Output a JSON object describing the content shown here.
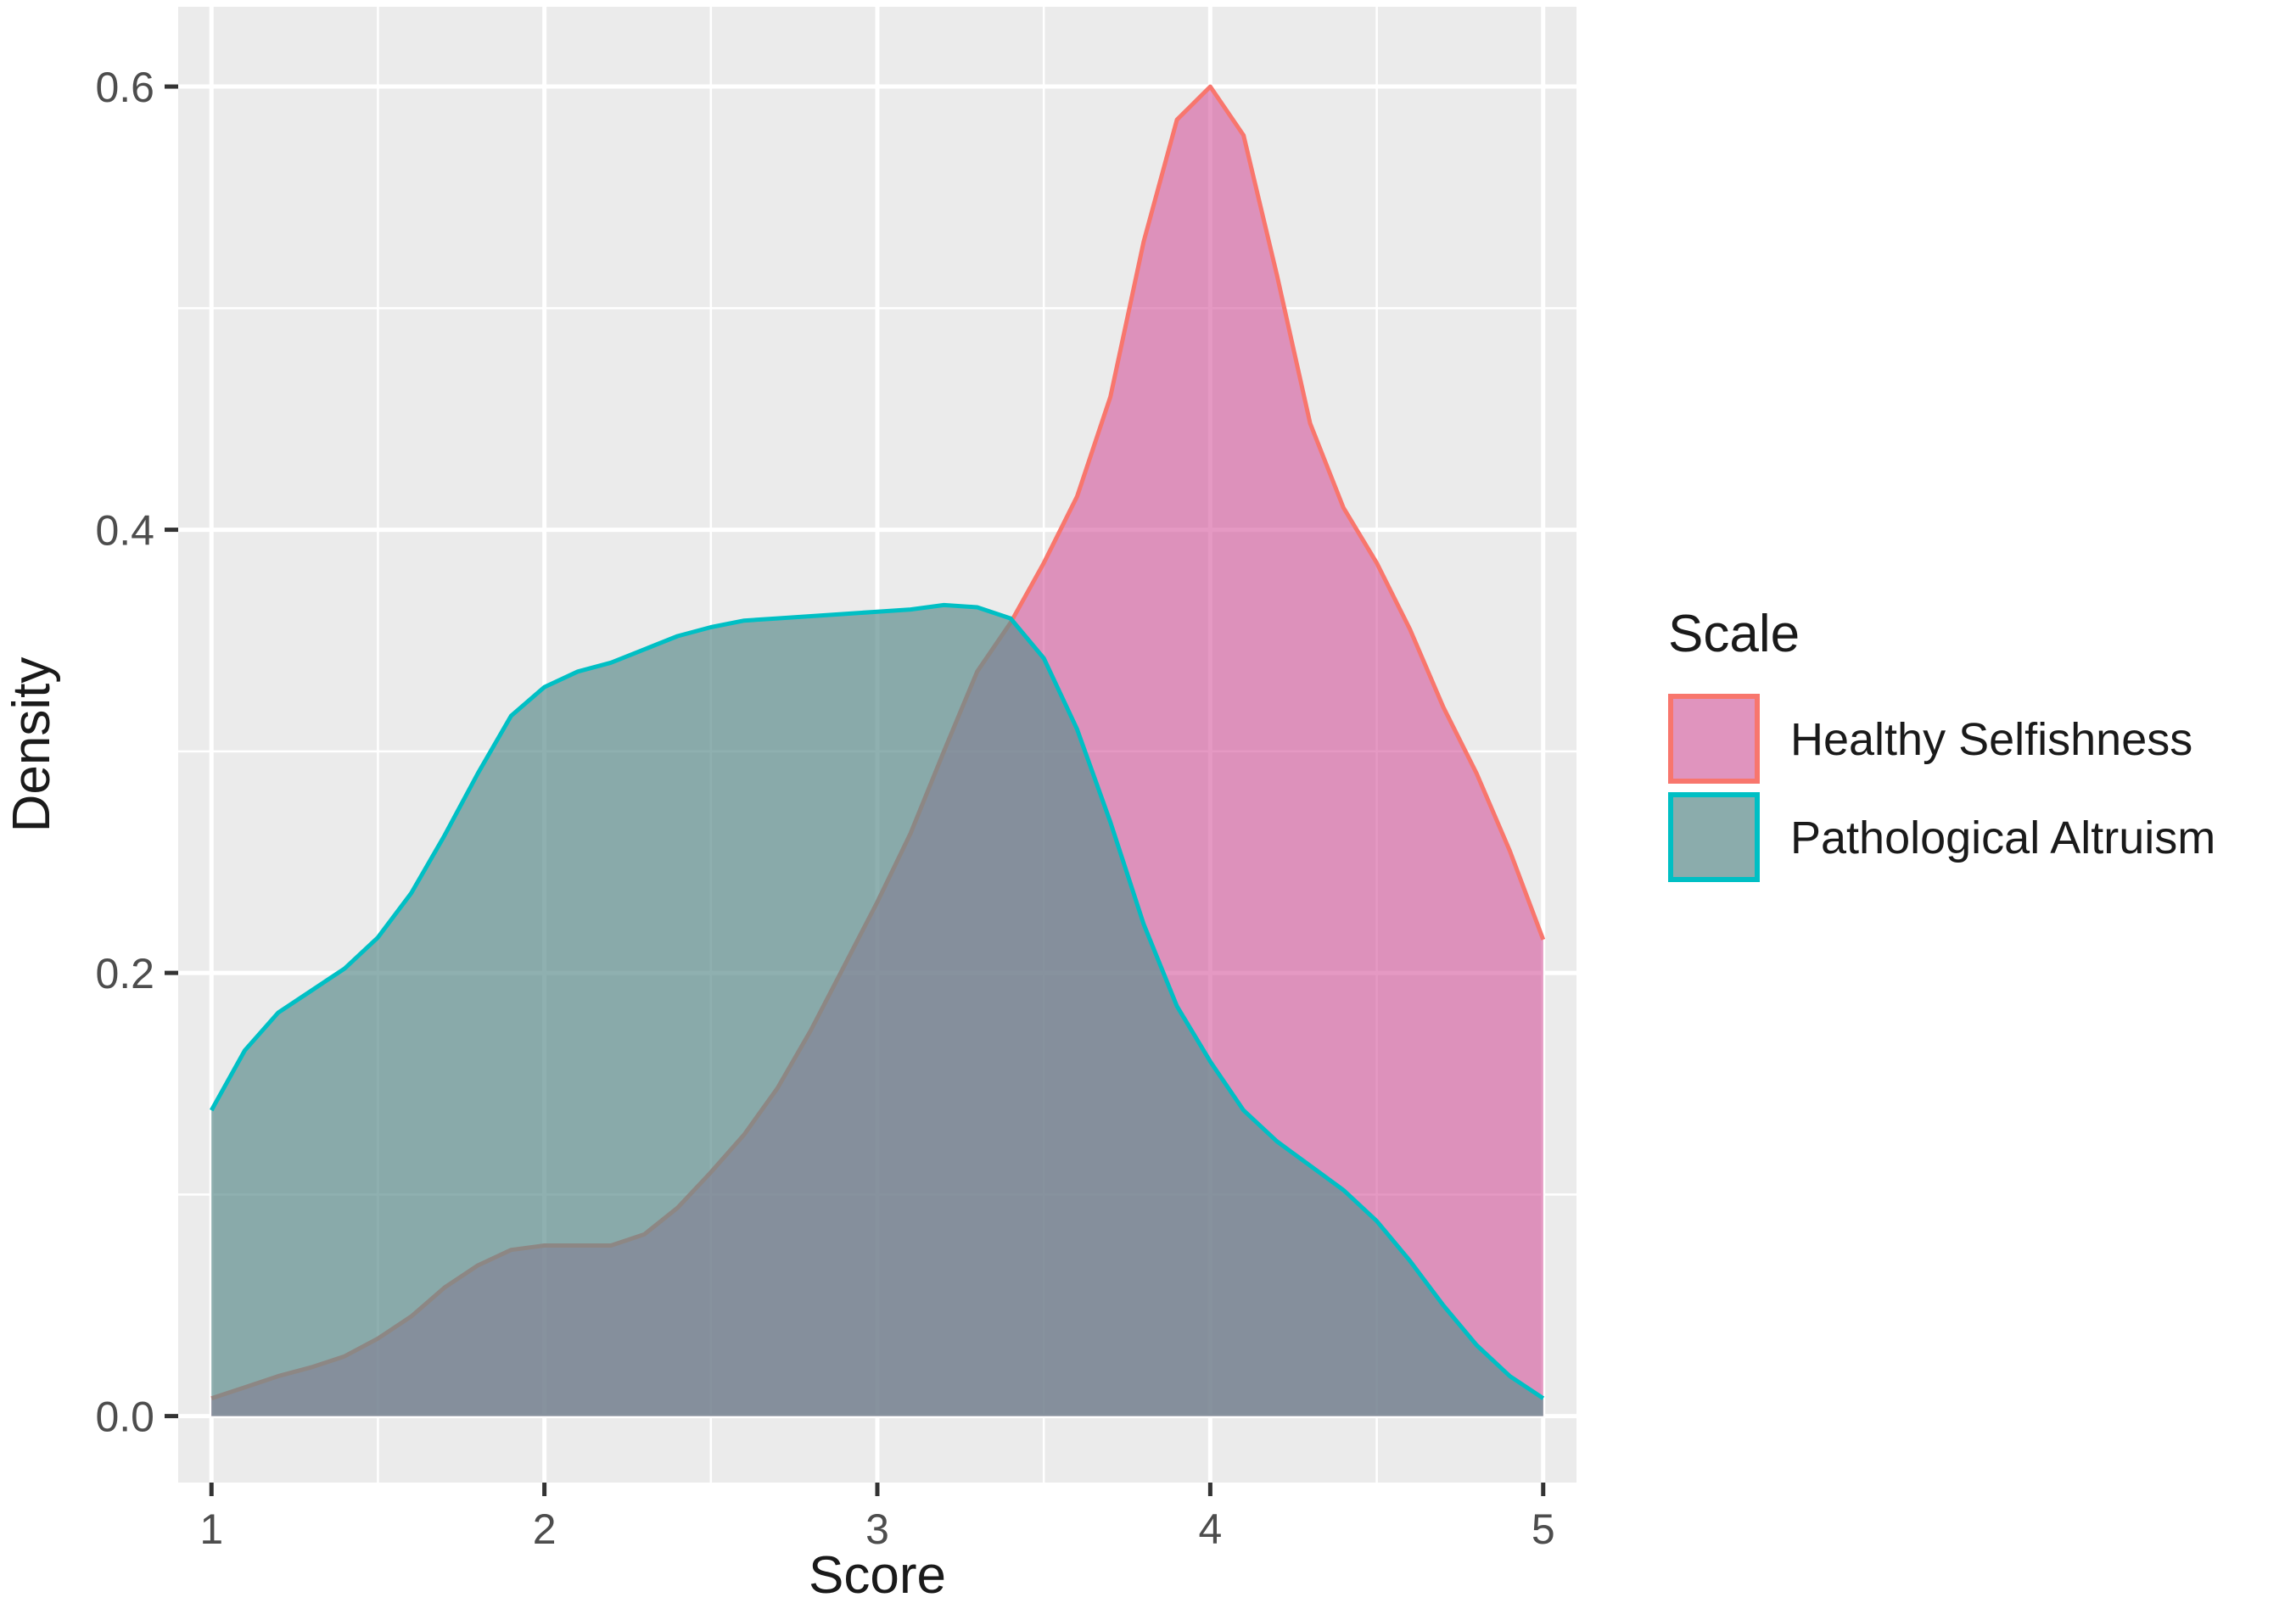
{
  "chart_data": {
    "type": "area",
    "xlabel": "Score",
    "ylabel": "Density",
    "xlim": [
      0.9,
      5.1
    ],
    "ylim": [
      -0.03,
      0.636
    ],
    "x_ticks": [
      1,
      2,
      3,
      4,
      5
    ],
    "y_ticks": [
      0.0,
      0.2,
      0.4,
      0.6
    ],
    "x_tick_labels": [
      "1",
      "2",
      "3",
      "4",
      "5"
    ],
    "y_tick_labels": [
      "0.0",
      "0.2",
      "0.4",
      "0.6"
    ],
    "grid": true,
    "legend": {
      "title": "Scale",
      "placement": "right"
    },
    "series": [
      {
        "name": "Healthy Selfishness",
        "line_color": "#F8766D",
        "fill_color": "#D4559B",
        "fill_opacity": 0.6,
        "points": [
          [
            1.0,
            0.008
          ],
          [
            1.1,
            0.013
          ],
          [
            1.2,
            0.018
          ],
          [
            1.3,
            0.022
          ],
          [
            1.4,
            0.027
          ],
          [
            1.5,
            0.035
          ],
          [
            1.6,
            0.045
          ],
          [
            1.7,
            0.058
          ],
          [
            1.8,
            0.068
          ],
          [
            1.9,
            0.075
          ],
          [
            2.0,
            0.077
          ],
          [
            2.1,
            0.077
          ],
          [
            2.2,
            0.077
          ],
          [
            2.3,
            0.082
          ],
          [
            2.4,
            0.094
          ],
          [
            2.5,
            0.11
          ],
          [
            2.6,
            0.127
          ],
          [
            2.7,
            0.148
          ],
          [
            2.8,
            0.174
          ],
          [
            2.9,
            0.203
          ],
          [
            3.0,
            0.232
          ],
          [
            3.1,
            0.263
          ],
          [
            3.2,
            0.3
          ],
          [
            3.3,
            0.336
          ],
          [
            3.4,
            0.358
          ],
          [
            3.5,
            0.385
          ],
          [
            3.6,
            0.415
          ],
          [
            3.7,
            0.46
          ],
          [
            3.8,
            0.53
          ],
          [
            3.9,
            0.585
          ],
          [
            4.0,
            0.6
          ],
          [
            4.1,
            0.578
          ],
          [
            4.2,
            0.515
          ],
          [
            4.3,
            0.448
          ],
          [
            4.4,
            0.41
          ],
          [
            4.5,
            0.385
          ],
          [
            4.6,
            0.355
          ],
          [
            4.7,
            0.32
          ],
          [
            4.8,
            0.29
          ],
          [
            4.9,
            0.255
          ],
          [
            5.0,
            0.215
          ]
        ]
      },
      {
        "name": "Pathological Altruism",
        "line_color": "#00BFC4",
        "fill_color": "#5F8F8E",
        "fill_opacity": 0.7,
        "points": [
          [
            1.0,
            0.138
          ],
          [
            1.1,
            0.165
          ],
          [
            1.2,
            0.182
          ],
          [
            1.3,
            0.192
          ],
          [
            1.4,
            0.202
          ],
          [
            1.5,
            0.216
          ],
          [
            1.6,
            0.236
          ],
          [
            1.7,
            0.262
          ],
          [
            1.8,
            0.29
          ],
          [
            1.9,
            0.316
          ],
          [
            2.0,
            0.329
          ],
          [
            2.1,
            0.336
          ],
          [
            2.2,
            0.34
          ],
          [
            2.3,
            0.346
          ],
          [
            2.4,
            0.352
          ],
          [
            2.5,
            0.356
          ],
          [
            2.6,
            0.359
          ],
          [
            2.7,
            0.36
          ],
          [
            2.8,
            0.361
          ],
          [
            2.9,
            0.362
          ],
          [
            3.0,
            0.363
          ],
          [
            3.1,
            0.364
          ],
          [
            3.2,
            0.366
          ],
          [
            3.3,
            0.365
          ],
          [
            3.4,
            0.36
          ],
          [
            3.5,
            0.342
          ],
          [
            3.6,
            0.31
          ],
          [
            3.7,
            0.268
          ],
          [
            3.8,
            0.222
          ],
          [
            3.9,
            0.185
          ],
          [
            4.0,
            0.16
          ],
          [
            4.1,
            0.138
          ],
          [
            4.2,
            0.124
          ],
          [
            4.3,
            0.113
          ],
          [
            4.4,
            0.102
          ],
          [
            4.5,
            0.088
          ],
          [
            4.6,
            0.07
          ],
          [
            4.7,
            0.05
          ],
          [
            4.8,
            0.032
          ],
          [
            4.9,
            0.018
          ],
          [
            5.0,
            0.008
          ]
        ]
      }
    ]
  }
}
